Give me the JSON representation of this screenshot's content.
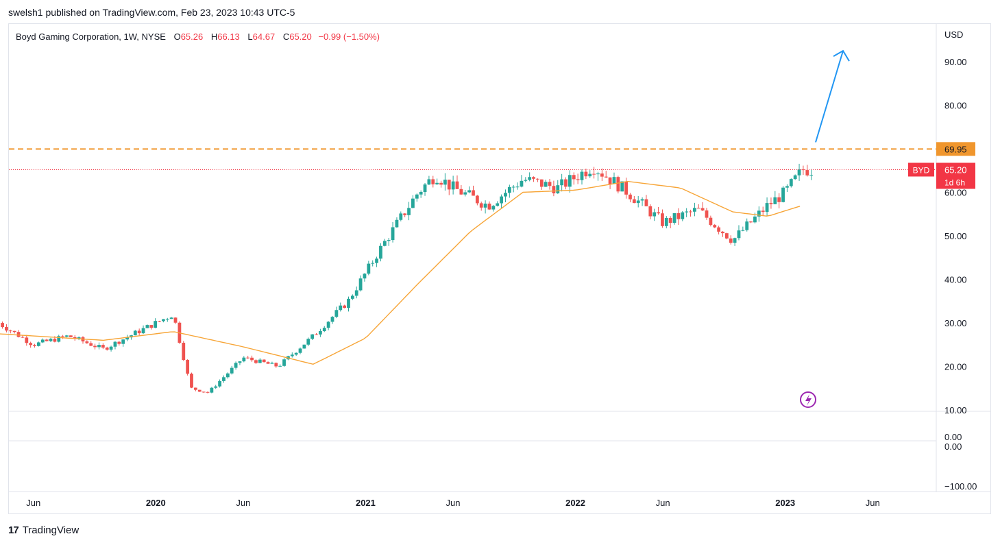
{
  "header": {
    "text": "swelsh1 published on TradingView.com, Feb 23, 2023 10:43 UTC-5"
  },
  "legend": {
    "symbol": "Boyd Gaming Corporation, 1W, NYSE",
    "open_label": "O",
    "open": "65.26",
    "high_label": "H",
    "high": "66.13",
    "low_label": "L",
    "low": "64.67",
    "close_label": "C",
    "close": "65.20",
    "change": "−0.99 (−1.50%)"
  },
  "colors": {
    "up": "#26a69a",
    "down": "#ef5350",
    "ma": "#f7a537",
    "level": "#f0962d",
    "arrow": "#2196f3",
    "price_badge": "#f23645",
    "grid": "#e0e3eb",
    "axis_text": "#131722"
  },
  "price_axis": {
    "currency": "USD",
    "ticks": [
      "90.00",
      "80.00",
      "70.00",
      "60.00",
      "50.00",
      "40.00",
      "30.00",
      "20.00",
      "10.00"
    ]
  },
  "lower_axis": {
    "ticks": [
      "0.00",
      "0.00",
      "−100.00"
    ]
  },
  "time_axis": {
    "labels": [
      "Jun",
      "2020",
      "Jun",
      "2021",
      "Jun",
      "2022",
      "Jun",
      "2023",
      "Jun"
    ],
    "bold": [
      "2020",
      "2021",
      "2022",
      "2023"
    ]
  },
  "badges": {
    "level": "69.95",
    "symbol": "BYD",
    "last_price": "65.20",
    "countdown": "1d 6h"
  },
  "chart_data": {
    "type": "candlestick",
    "title": "Boyd Gaming Corporation, 1W, NYSE",
    "ylabel": "USD",
    "ylim": [
      10,
      100
    ],
    "x_range": [
      "2019-04",
      "2023-08"
    ],
    "horizontal_level": 69.95,
    "last_price": 65.2,
    "close_series_approx": {
      "dates": [
        "2019-04",
        "2019-06",
        "2019-08",
        "2019-10",
        "2019-12",
        "2020-02",
        "2020-03",
        "2020-04",
        "2020-06",
        "2020-08",
        "2020-10",
        "2020-12",
        "2021-02",
        "2021-04",
        "2021-05",
        "2021-06",
        "2021-08",
        "2021-10",
        "2021-12",
        "2022-02",
        "2022-04",
        "2022-06",
        "2022-08",
        "2022-10",
        "2022-12",
        "2023-01",
        "2023-02"
      ],
      "values": [
        30.0,
        25.0,
        27.0,
        24.0,
        28.0,
        32.0,
        15.0,
        14.0,
        22.0,
        20.0,
        27.0,
        35.0,
        48.0,
        60.0,
        64.0,
        61.0,
        57.0,
        63.0,
        61.0,
        66.0,
        60.0,
        53.0,
        56.0,
        49.0,
        57.0,
        60.0,
        65.2
      ]
    },
    "ma_series_approx": {
      "dates": [
        "2019-04",
        "2019-10",
        "2020-02",
        "2020-06",
        "2020-10",
        "2021-01",
        "2021-04",
        "2021-07",
        "2021-10",
        "2022-01",
        "2022-04",
        "2022-07",
        "2022-10",
        "2022-12",
        "2023-02"
      ],
      "values": [
        27.5,
        26.0,
        28.0,
        24.5,
        20.5,
        26.5,
        39.0,
        51.0,
        60.0,
        60.5,
        62.5,
        61.0,
        55.5,
        54.5,
        57.0
      ]
    },
    "annotations": [
      "Horizontal dashed level at 69.95",
      "Upward arrow projecting toward ~92"
    ]
  },
  "footer": {
    "brand": "TradingView"
  }
}
